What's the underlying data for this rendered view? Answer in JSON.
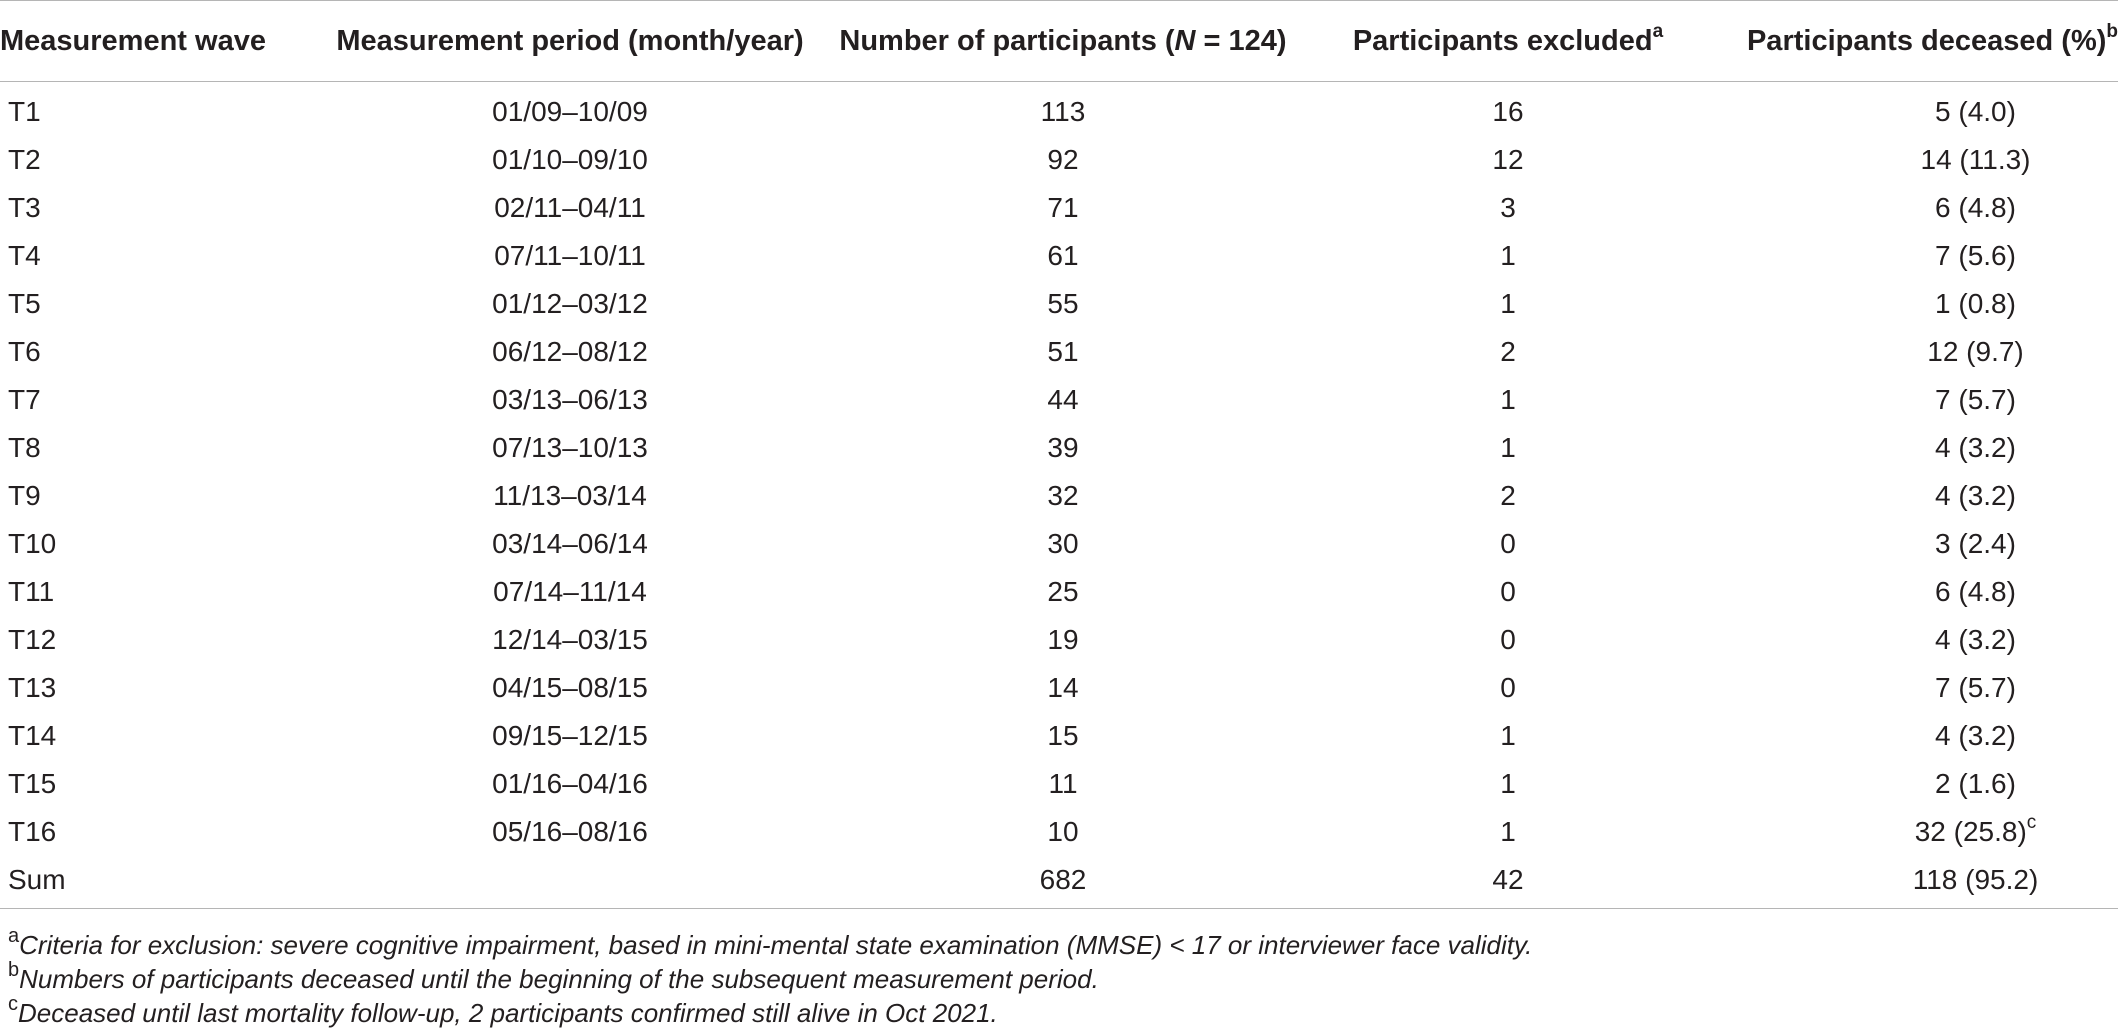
{
  "table": {
    "headers": {
      "wave": "Measurement wave",
      "period": "Measurement period (month/year)",
      "participants_prefix": "Number of participants (",
      "participants_n": "N",
      "participants_suffix": " = 124)",
      "excluded": "Participants excluded",
      "excluded_sup": "a",
      "deceased": "Participants deceased (%)",
      "deceased_sup": "b"
    },
    "rows": [
      {
        "wave": "T1",
        "period": "01/09–10/09",
        "participants": "113",
        "excluded": "16",
        "deceased": "5 (4.0)"
      },
      {
        "wave": "T2",
        "period": "01/10–09/10",
        "participants": "92",
        "excluded": "12",
        "deceased": "14 (11.3)"
      },
      {
        "wave": "T3",
        "period": "02/11–04/11",
        "participants": "71",
        "excluded": "3",
        "deceased": "6 (4.8)"
      },
      {
        "wave": "T4",
        "period": "07/11–10/11",
        "participants": "61",
        "excluded": "1",
        "deceased": "7 (5.6)"
      },
      {
        "wave": "T5",
        "period": "01/12–03/12",
        "participants": "55",
        "excluded": "1",
        "deceased": "1 (0.8)"
      },
      {
        "wave": "T6",
        "period": "06/12–08/12",
        "participants": "51",
        "excluded": "2",
        "deceased": "12 (9.7)"
      },
      {
        "wave": "T7",
        "period": "03/13–06/13",
        "participants": "44",
        "excluded": "1",
        "deceased": "7 (5.7)"
      },
      {
        "wave": "T8",
        "period": "07/13–10/13",
        "participants": "39",
        "excluded": "1",
        "deceased": "4 (3.2)"
      },
      {
        "wave": "T9",
        "period": "11/13–03/14",
        "participants": "32",
        "excluded": "2",
        "deceased": "4 (3.2)"
      },
      {
        "wave": "T10",
        "period": "03/14–06/14",
        "participants": "30",
        "excluded": "0",
        "deceased": "3 (2.4)"
      },
      {
        "wave": "T11",
        "period": "07/14–11/14",
        "participants": "25",
        "excluded": "0",
        "deceased": "6 (4.8)"
      },
      {
        "wave": "T12",
        "period": "12/14–03/15",
        "participants": "19",
        "excluded": "0",
        "deceased": "4 (3.2)"
      },
      {
        "wave": "T13",
        "period": "04/15–08/15",
        "participants": "14",
        "excluded": "0",
        "deceased": "7 (5.7)"
      },
      {
        "wave": "T14",
        "period": "09/15–12/15",
        "participants": "15",
        "excluded": "1",
        "deceased": "4 (3.2)"
      },
      {
        "wave": "T15",
        "period": "01/16–04/16",
        "participants": "11",
        "excluded": "1",
        "deceased": "2 (1.6)"
      },
      {
        "wave": "T16",
        "period": "05/16–08/16",
        "participants": "10",
        "excluded": "1",
        "deceased": "32 (25.8)",
        "deceased_sup": "c"
      },
      {
        "wave": "Sum",
        "period": "",
        "participants": "682",
        "excluded": "42",
        "deceased": "118 (95.2)"
      }
    ]
  },
  "footnotes": [
    {
      "marker": "a",
      "text": "Criteria for exclusion: severe cognitive impairment, based in mini-mental state examination (MMSE) < 17 or interviewer face validity."
    },
    {
      "marker": "b",
      "text": "Numbers of participants deceased until the beginning of the subsequent measurement period."
    },
    {
      "marker": "c",
      "text": "Deceased until last mortality follow-up, 2 participants confirmed still alive in Oct 2021."
    }
  ]
}
